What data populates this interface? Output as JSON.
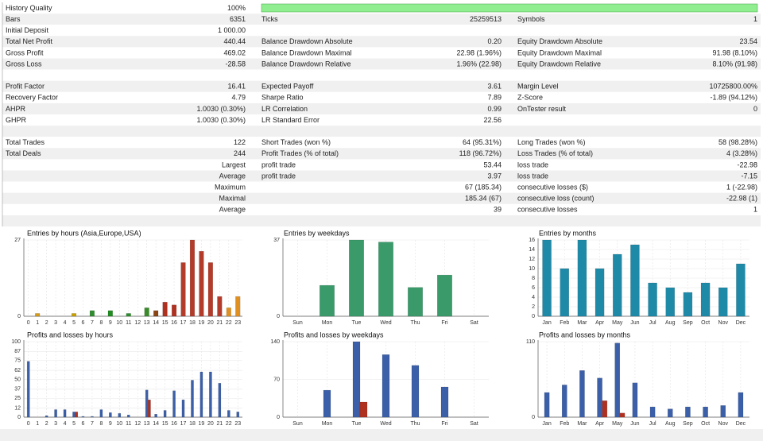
{
  "table": {
    "rows": [
      [
        "History Quality",
        "100%",
        null,
        null,
        null,
        null
      ],
      [
        "Bars",
        "6351",
        "Ticks",
        "25259513",
        "Symbols",
        "1"
      ],
      [
        "Initial Deposit",
        "1 000.00",
        null,
        null,
        null,
        null
      ],
      [
        "Total Net Profit",
        "440.44",
        "Balance Drawdown Absolute",
        "0.20",
        "Equity Drawdown Absolute",
        "23.54"
      ],
      [
        "Gross Profit",
        "469.02",
        "Balance Drawdown Maximal",
        "22.98 (1.96%)",
        "Equity Drawdown Maximal",
        "91.98 (8.10%)"
      ],
      [
        "Gross Loss",
        "-28.58",
        "Balance Drawdown Relative",
        "1.96% (22.98)",
        "Equity Drawdown Relative",
        "8.10% (91.98)"
      ],
      [],
      [
        "Profit Factor",
        "16.41",
        "Expected Payoff",
        "3.61",
        "Margin Level",
        "10725800.00%"
      ],
      [
        "Recovery Factor",
        "4.79",
        "Sharpe Ratio",
        "7.89",
        "Z-Score",
        "-1.89 (94.12%)"
      ],
      [
        "AHPR",
        "1.0030 (0.30%)",
        "LR Correlation",
        "0.99",
        "OnTester result",
        "0"
      ],
      [
        "GHPR",
        "1.0030 (0.30%)",
        "LR Standard Error",
        "22.56",
        null,
        null
      ],
      [],
      [
        "Total Trades",
        "122",
        "Short Trades (won %)",
        "64 (95.31%)",
        "Long Trades (won %)",
        "58 (98.28%)"
      ],
      [
        "Total Deals",
        "244",
        "Profit Trades (% of total)",
        "118 (96.72%)",
        "Loss Trades (% of total)",
        "4 (3.28%)"
      ],
      [
        null,
        "Largest",
        "profit trade",
        "53.44",
        "loss trade",
        "-22.98"
      ],
      [
        null,
        "Average",
        "profit trade",
        "3.97",
        "loss trade",
        "-7.15"
      ],
      [
        null,
        "Maximum",
        null,
        "67 (185.34)",
        "consecutive losses ($)",
        "1 (-22.98)"
      ],
      [
        null,
        "Maximal",
        null,
        "185.34 (67)",
        "consecutive loss (count)",
        "-22.98 (1)"
      ],
      [
        null,
        "Average",
        null,
        "39",
        "consecutive losses",
        "1"
      ],
      []
    ]
  },
  "chart_data": [
    {
      "type": "bar",
      "title": "Entries by hours (Asia,Europe,USA)",
      "categories": [
        "0",
        "1",
        "2",
        "3",
        "4",
        "5",
        "6",
        "7",
        "8",
        "9",
        "10",
        "11",
        "12",
        "13",
        "14",
        "15",
        "16",
        "17",
        "18",
        "19",
        "20",
        "21",
        "22",
        "23"
      ],
      "values": [
        0,
        1,
        0,
        0,
        0,
        1,
        0,
        2,
        0,
        2,
        0,
        1,
        0,
        3,
        2,
        5,
        4,
        19,
        27,
        23,
        19,
        7,
        3,
        7
      ],
      "colors": [
        "#d49a1a",
        "#d49a1a",
        "#d4a21a",
        "#c8a41a",
        "#b8a81a",
        "#c8a000",
        "#58901a",
        "#2e8b2e",
        "#2e8b2e",
        "#228b22",
        "#2e8b2e",
        "#2e8b2e",
        "#2e8b2e",
        "#3a8a2a",
        "#8b4513",
        "#b03020",
        "#b03020",
        "#b43b2a",
        "#b43b2a",
        "#b43b2a",
        "#b43b2a",
        "#b43b2a",
        "#e09020",
        "#e09020"
      ],
      "ylim": [
        0,
        27
      ],
      "yticks": [
        0,
        27
      ]
    },
    {
      "type": "bar",
      "title": "Entries by weekdays",
      "categories": [
        "Sun",
        "Mon",
        "Tue",
        "Wed",
        "Thu",
        "Fri",
        "Sat"
      ],
      "values": [
        0,
        15,
        37,
        36,
        14,
        20,
        0
      ],
      "color": "#3a9a6a",
      "ylim": [
        0,
        37
      ],
      "yticks": [
        0,
        37
      ]
    },
    {
      "type": "bar",
      "title": "Entries by months",
      "categories": [
        "Jan",
        "Feb",
        "Mar",
        "Apr",
        "May",
        "Jun",
        "Jul",
        "Aug",
        "Sep",
        "Oct",
        "Nov",
        "Dec"
      ],
      "values": [
        16,
        10,
        16,
        10,
        13,
        15,
        7,
        6,
        5,
        7,
        6,
        11
      ],
      "color": "#1f8aa8",
      "ylim": [
        0,
        16
      ],
      "yticks": [
        0,
        2,
        4,
        6,
        8,
        10,
        12,
        14,
        16
      ]
    },
    {
      "type": "bar",
      "title": "Profits and losses by hours",
      "categories": [
        "0",
        "1",
        "2",
        "3",
        "4",
        "5",
        "6",
        "7",
        "8",
        "9",
        "10",
        "11",
        "12",
        "13",
        "14",
        "15",
        "16",
        "17",
        "18",
        "19",
        "20",
        "21",
        "22",
        "23"
      ],
      "series": [
        {
          "color": "#3b5fa8",
          "values": [
            74,
            0,
            2,
            10,
            10,
            7,
            1,
            1,
            10,
            6,
            5,
            3,
            0,
            36,
            4,
            9,
            35,
            23,
            49,
            60,
            60,
            45,
            9,
            7
          ]
        },
        {
          "color": "#b03020",
          "values": [
            null,
            null,
            null,
            null,
            null,
            7,
            null,
            null,
            null,
            null,
            null,
            null,
            null,
            23,
            null,
            null,
            null,
            null,
            null,
            null,
            null,
            null,
            null,
            null
          ]
        }
      ],
      "ylim": [
        0,
        100
      ],
      "yticks": [
        0,
        12,
        25,
        37,
        50,
        62,
        75,
        87,
        100
      ]
    },
    {
      "type": "bar",
      "title": "Profits and losses by weekdays",
      "categories": [
        "Sun",
        "Mon",
        "Tue",
        "Wed",
        "Thu",
        "Fri",
        "Sat"
      ],
      "series": [
        {
          "color": "#3b5fa8",
          "values": [
            0,
            50,
            140,
            116,
            96,
            56,
            0
          ]
        },
        {
          "color": "#b03020",
          "values": [
            null,
            null,
            28,
            null,
            null,
            null,
            null
          ]
        }
      ],
      "ylim": [
        0,
        140
      ],
      "yticks": [
        0,
        70,
        140
      ]
    },
    {
      "type": "bar",
      "title": "Profits and losses by months",
      "categories": [
        "Jan",
        "Feb",
        "Mar",
        "Apr",
        "May",
        "Jun",
        "Jul",
        "Aug",
        "Sep",
        "Oct",
        "Nov",
        "Dec"
      ],
      "series": [
        {
          "color": "#3b5fa8",
          "values": [
            36,
            47,
            68,
            57,
            108,
            50,
            15,
            12,
            15,
            15,
            17,
            36
          ]
        },
        {
          "color": "#b03020",
          "values": [
            null,
            null,
            null,
            24,
            6,
            null,
            null,
            null,
            null,
            null,
            null,
            null
          ]
        }
      ],
      "ylim": [
        0,
        110
      ],
      "yticks": [
        0,
        110
      ]
    }
  ]
}
